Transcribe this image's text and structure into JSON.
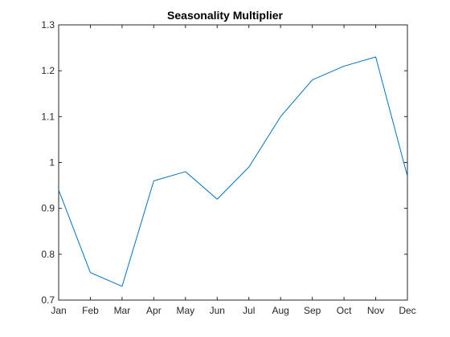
{
  "chart_data": {
    "type": "line",
    "title": "Seasonality Multiplier",
    "xlabel": "",
    "ylabel": "",
    "categories": [
      "Jan",
      "Feb",
      "Mar",
      "Apr",
      "May",
      "Jun",
      "Jul",
      "Aug",
      "Sep",
      "Oct",
      "Nov",
      "Dec"
    ],
    "series": [
      {
        "values": [
          0.94,
          0.76,
          0.73,
          0.96,
          0.98,
          0.92,
          0.99,
          1.1,
          1.18,
          1.21,
          1.23,
          0.97
        ],
        "color": "#0072BD"
      }
    ],
    "ylim": [
      0.7,
      1.3
    ],
    "yticks": [
      0.7,
      0.8,
      0.9,
      1,
      1.1,
      1.2,
      1.3
    ],
    "ytick_labels": [
      "0.7",
      "0.8",
      "0.9",
      "1",
      "1.1",
      "1.2",
      "1.3"
    ],
    "grid": false,
    "legend": "none",
    "axis_color": "#262626"
  }
}
